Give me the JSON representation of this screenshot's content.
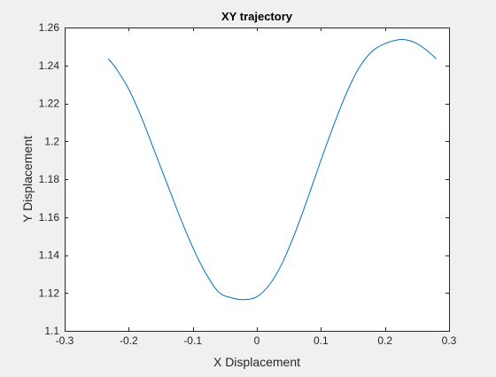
{
  "chart_data": {
    "type": "line",
    "title": "XY trajectory",
    "xlabel": "X Displacement",
    "ylabel": "Y Displacement",
    "xlim": [
      -0.3,
      0.3
    ],
    "ylim": [
      1.1,
      1.26
    ],
    "xticks": [
      -0.3,
      -0.2,
      -0.1,
      0,
      0.1,
      0.2,
      0.3
    ],
    "xtick_labels": [
      "-0.3",
      "-0.2",
      "-0.1",
      "0",
      "0.1",
      "0.2",
      "0.3"
    ],
    "yticks": [
      1.1,
      1.12,
      1.14,
      1.16,
      1.18,
      1.2,
      1.22,
      1.24,
      1.26
    ],
    "ytick_labels": [
      "1.1",
      "1.12",
      "1.14",
      "1.16",
      "1.18",
      "1.2",
      "1.22",
      "1.24",
      "1.26"
    ],
    "grid": false,
    "colors": {
      "line": "#0072bd",
      "axes": "#262626",
      "plot_background": "#ffffff",
      "figure_background": "#f0f0f0"
    },
    "series": [
      {
        "x": [
          -0.232,
          -0.22,
          -0.2,
          -0.18,
          -0.16,
          -0.14,
          -0.12,
          -0.1,
          -0.08,
          -0.06,
          -0.04,
          -0.02,
          0.0,
          0.02,
          0.04,
          0.06,
          0.08,
          0.1,
          0.12,
          0.14,
          0.16,
          0.18,
          0.2,
          0.22,
          0.233,
          0.25,
          0.265,
          0.28
        ],
        "y": [
          1.2435,
          1.2385,
          1.2275,
          1.2125,
          1.195,
          1.1775,
          1.16,
          1.144,
          1.1305,
          1.1205,
          1.1175,
          1.1165,
          1.118,
          1.1245,
          1.136,
          1.152,
          1.1705,
          1.19,
          1.2085,
          1.2255,
          1.239,
          1.2475,
          1.2515,
          1.2535,
          1.2535,
          1.2515,
          1.248,
          1.2435
        ]
      }
    ]
  }
}
